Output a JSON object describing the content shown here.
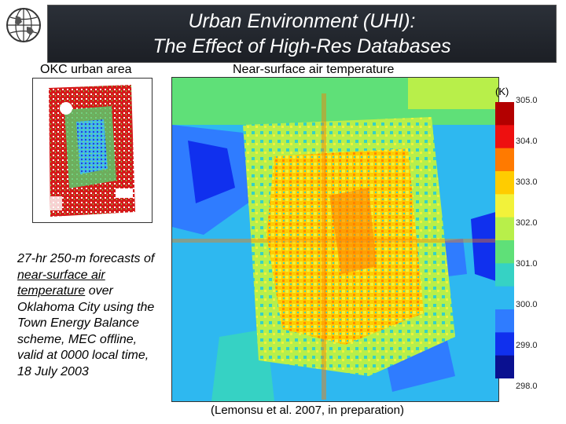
{
  "slide": {
    "title_line1": "Urban Environment (UHI):",
    "title_line2": "The Effect of High-Res Databases",
    "inset_label": "OKC urban area",
    "map_label": "Near-surface air temperature",
    "colorbar": {
      "unit": "(K)",
      "ticks": [
        "305.0",
        "304.0",
        "303.0",
        "302.0",
        "301.0",
        "300.0",
        "299.0",
        "298.0"
      ],
      "colors": [
        "#b30000",
        "#ee1010",
        "#ff7a00",
        "#ffcc00",
        "#f2f23a",
        "#b8ef4a",
        "#5fe078",
        "#36d2c4",
        "#2eb8f0",
        "#2f7cff",
        "#1030ee",
        "#0a1090"
      ]
    },
    "caption": {
      "part1": "27-hr 250-m forecasts of ",
      "underlined": "near-surface air temperature",
      "part2": " over Oklahoma City using the Town Energy Balance scheme, MEC offline, valid at 0000 local time, 18 July 2003"
    },
    "citation": "(Lemonsu et al. 2007, in preparation)",
    "logo_icon": "globe-logo-icon"
  }
}
